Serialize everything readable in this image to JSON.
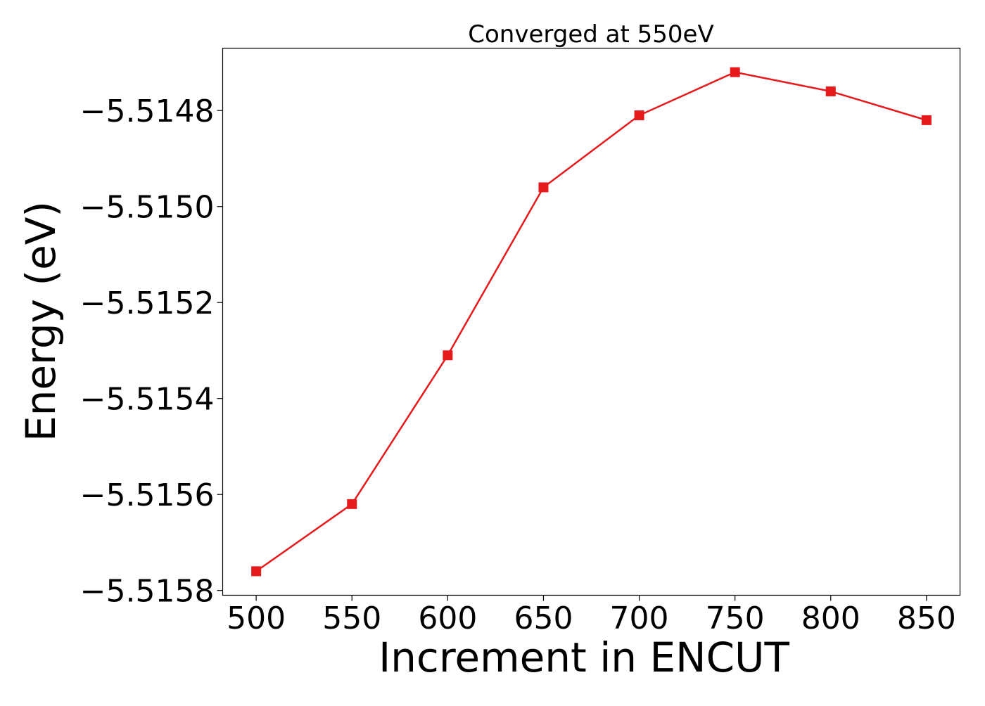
{
  "chart_data": {
    "type": "line",
    "title": "Converged at 550eV",
    "xlabel": "Increment in ENCUT",
    "ylabel": "Energy (eV)",
    "x": [
      500,
      550,
      600,
      650,
      700,
      750,
      800,
      850
    ],
    "series": [
      {
        "values": [
          -5.51576,
          -5.51562,
          -5.51531,
          -5.51496,
          -5.51481,
          -5.51472,
          -5.51476,
          -5.51482
        ],
        "color": "#e41a1c",
        "marker": "square"
      }
    ],
    "xlim": [
      482.5,
      867.5
    ],
    "ylim": [
      -5.51581,
      -5.51467
    ],
    "xticks": [
      500,
      550,
      600,
      650,
      700,
      750,
      800,
      850
    ],
    "xtick_labels": [
      "500",
      "550",
      "600",
      "650",
      "700",
      "750",
      "800",
      "850"
    ],
    "yticks": [
      -5.5158,
      -5.5156,
      -5.5154,
      -5.5152,
      -5.515,
      -5.5148
    ],
    "ytick_labels": [
      "−5.5158",
      "−5.5156",
      "−5.5154",
      "−5.5152",
      "−5.5150",
      "−5.5148"
    ],
    "grid": false,
    "legend": "none"
  }
}
